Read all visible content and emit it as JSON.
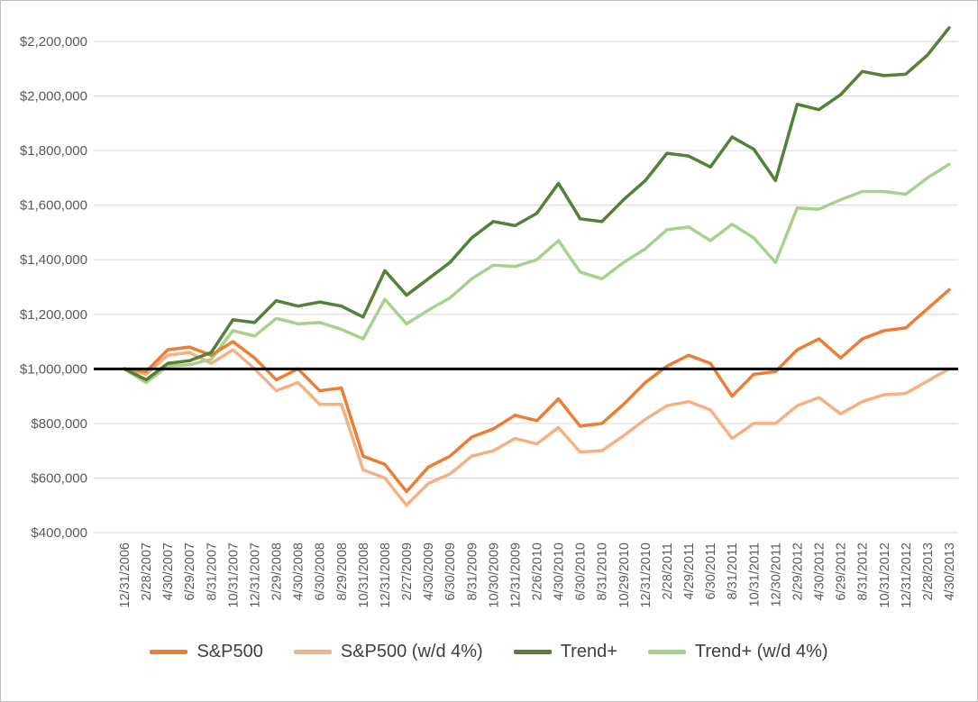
{
  "theme": {
    "background": "#FFFFFF",
    "frame_border": "#BDBDBD",
    "gridline_color": "#D9D9D9",
    "axis_text_color": "#595959",
    "legend_text_color": "#3F3F3F"
  },
  "chart_data": {
    "type": "line",
    "title": "",
    "xlabel": "",
    "ylabel": "",
    "grid": true,
    "legend_position": "bottom",
    "y_axis": {
      "min": 400000,
      "max": 2200000,
      "step": 200000,
      "tick_labels": [
        "$400,000",
        "$600,000",
        "$800,000",
        "$1,000,000",
        "$1,200,000",
        "$1,400,000",
        "$1,600,000",
        "$1,800,000",
        "$2,000,000",
        "$2,200,000"
      ]
    },
    "baseline": {
      "value": 1000000,
      "color": "#000000"
    },
    "x_labels": [
      "12/31/2006",
      "2/28/2007",
      "4/30/2007",
      "6/29/2007",
      "8/31/2007",
      "10/31/2007",
      "12/31/2007",
      "2/29/2008",
      "4/30/2008",
      "6/30/2008",
      "8/29/2008",
      "10/31/2008",
      "12/31/2008",
      "2/27/2009",
      "4/30/2009",
      "6/30/2009",
      "8/31/2009",
      "10/30/2009",
      "12/31/2009",
      "2/26/2010",
      "4/30/2010",
      "6/30/2010",
      "8/31/2010",
      "10/29/2010",
      "12/31/2010",
      "2/28/2011",
      "4/29/2011",
      "6/30/2011",
      "8/31/2011",
      "10/31/2011",
      "12/30/2011",
      "2/29/2012",
      "4/30/2012",
      "6/29/2012",
      "8/31/2012",
      "10/31/2012",
      "12/31/2012",
      "2/28/2013",
      "4/30/2013"
    ],
    "series": [
      {
        "name": "S&P500",
        "color": "#ED7D31",
        "values": [
          1000000,
          990000,
          1070000,
          1080000,
          1050000,
          1100000,
          1040000,
          960000,
          1000000,
          920000,
          930000,
          680000,
          650000,
          550000,
          640000,
          680000,
          750000,
          780000,
          830000,
          810000,
          890000,
          790000,
          800000,
          870000,
          950000,
          1010000,
          1050000,
          1020000,
          900000,
          980000,
          990000,
          1070000,
          1110000,
          1040000,
          1110000,
          1140000,
          1150000,
          1220000,
          1290000
        ]
      },
      {
        "name": "S&P500 (w/d 4%)",
        "color": "#F4B183",
        "values": [
          1000000,
          980000,
          1050000,
          1060000,
          1020000,
          1070000,
          1000000,
          920000,
          950000,
          870000,
          870000,
          630000,
          600000,
          500000,
          580000,
          615000,
          680000,
          700000,
          745000,
          725000,
          785000,
          695000,
          700000,
          755000,
          815000,
          865000,
          880000,
          850000,
          745000,
          800000,
          800000,
          865000,
          895000,
          835000,
          880000,
          905000,
          910000,
          955000,
          1000000
        ]
      },
      {
        "name": "Trend+",
        "color": "#538135",
        "values": [
          1000000,
          960000,
          1020000,
          1030000,
          1060000,
          1180000,
          1170000,
          1250000,
          1230000,
          1245000,
          1230000,
          1190000,
          1360000,
          1270000,
          1330000,
          1390000,
          1480000,
          1540000,
          1525000,
          1570000,
          1680000,
          1550000,
          1540000,
          1620000,
          1690000,
          1790000,
          1780000,
          1740000,
          1850000,
          1805000,
          1690000,
          1970000,
          1950000,
          2005000,
          2090000,
          2075000,
          2080000,
          2150000,
          2250000
        ]
      },
      {
        "name": "Trend+ (w/d 4%)",
        "color": "#A9D18E",
        "values": [
          1000000,
          950000,
          1010000,
          1015000,
          1035000,
          1140000,
          1120000,
          1185000,
          1165000,
          1170000,
          1145000,
          1110000,
          1255000,
          1165000,
          1215000,
          1260000,
          1330000,
          1380000,
          1375000,
          1400000,
          1470000,
          1355000,
          1330000,
          1390000,
          1440000,
          1510000,
          1520000,
          1470000,
          1530000,
          1480000,
          1390000,
          1590000,
          1585000,
          1620000,
          1650000,
          1650000,
          1640000,
          1700000,
          1750000
        ]
      }
    ]
  }
}
